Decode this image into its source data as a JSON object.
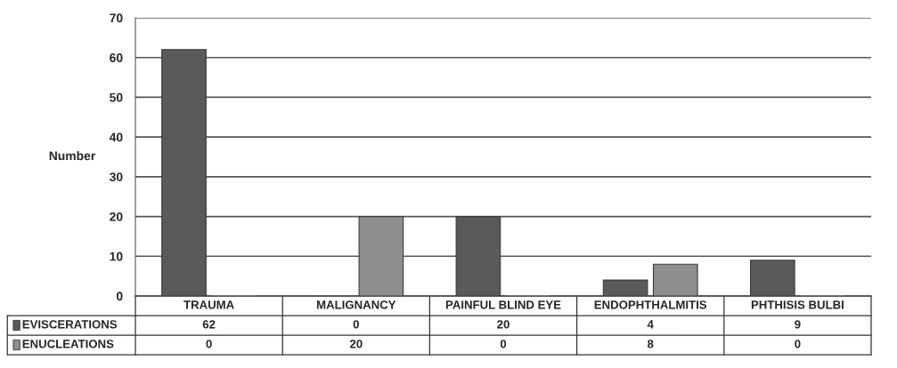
{
  "chart_data": {
    "type": "bar",
    "ylabel": "Number",
    "categories": [
      "TRAUMA",
      "MALIGNANCY",
      "PAINFUL BLIND EYE",
      "ENDOPHTHALMITIS",
      "PHTHISIS BULBI"
    ],
    "series": [
      {
        "name": "EVISCERATIONS",
        "color": "#5a5a5a",
        "values": [
          62,
          0,
          20,
          4,
          9
        ]
      },
      {
        "name": "ENUCLEATIONS",
        "color": "#8e8e8e",
        "values": [
          0,
          20,
          0,
          8,
          0
        ]
      }
    ],
    "ylim": [
      0,
      70
    ],
    "yticks": [
      0,
      10,
      20,
      30,
      40,
      50,
      60,
      70
    ],
    "grid": "y",
    "legend": "bottom",
    "data_labels": true
  }
}
